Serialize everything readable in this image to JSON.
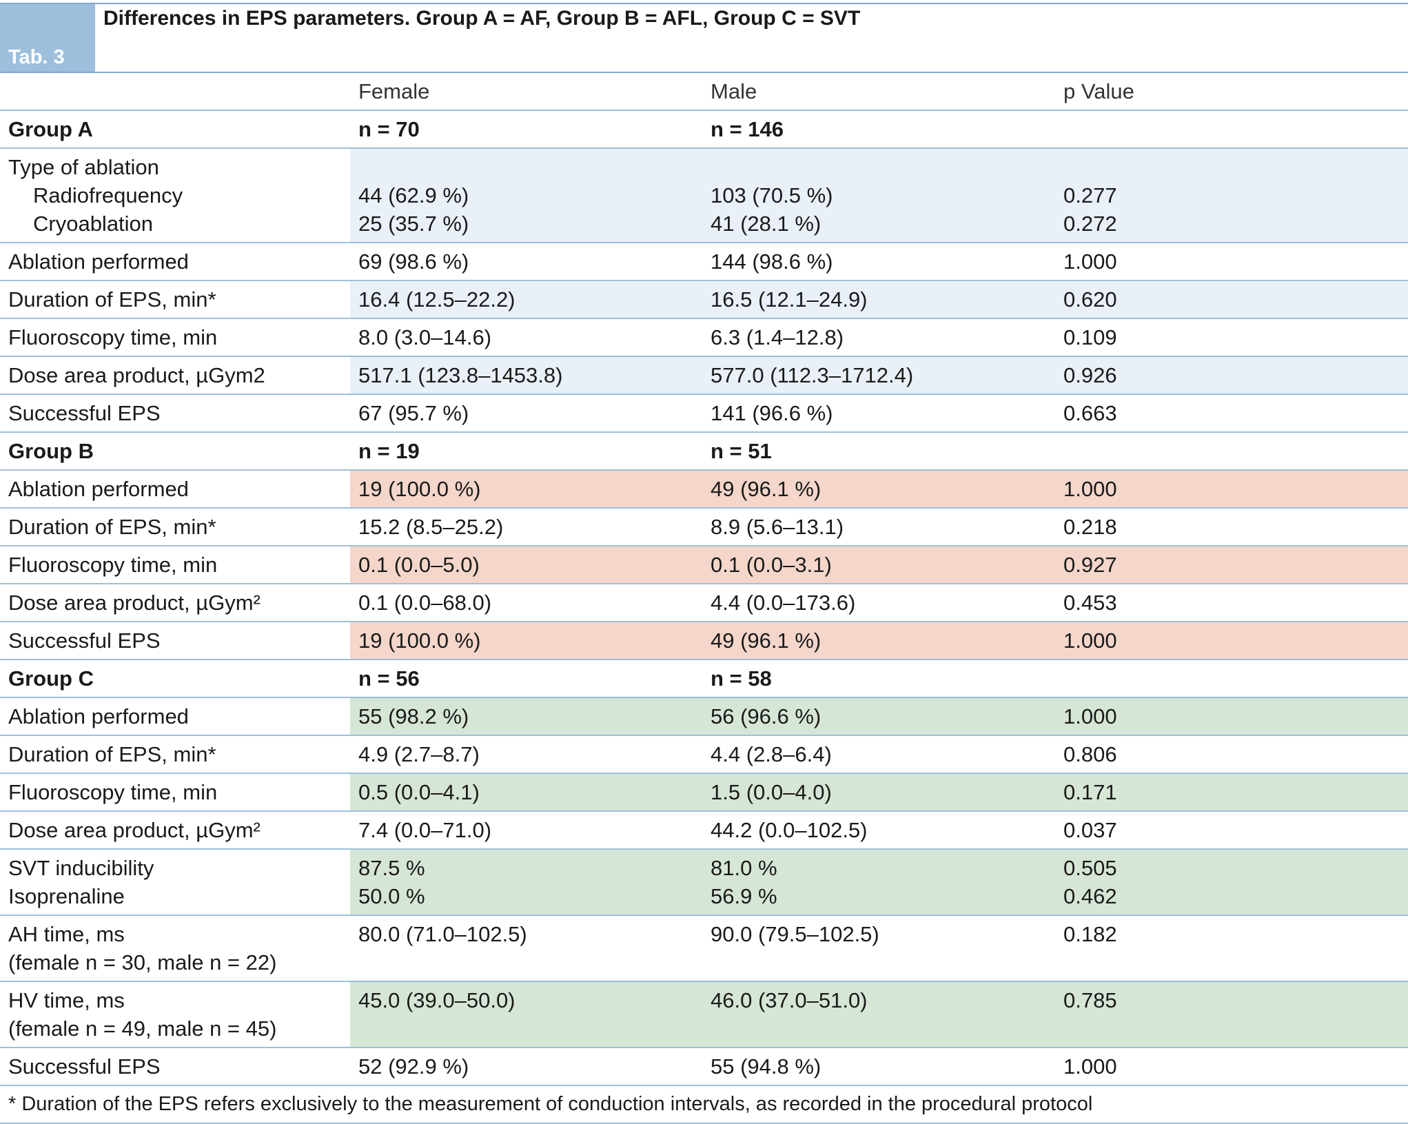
{
  "header": {
    "tab_label": "Tab. 3",
    "title": "Differences in EPS parameters. Group A = AF, Group B = AFL, Group C = SVT"
  },
  "columns": [
    "",
    "Female",
    "Male",
    "p Value"
  ],
  "colors": {
    "header_tab": "#9dbfdc",
    "group_a_tint": "#e9f0f8",
    "group_b_tint": "#f4d6ca",
    "group_c_tint": "#d6e6d6"
  },
  "group_a": {
    "label": "Group A",
    "n_female": "n = 70",
    "n_male": "n = 146",
    "type_of_ablation": "Type of ablation",
    "radiofrequency": {
      "label": "Radiofrequency",
      "female": "44 (62.9 %)",
      "male": "103 (70.5 %)",
      "p": "0.277"
    },
    "cryoablation": {
      "label": "Cryoablation",
      "female": "25 (35.7 %)",
      "male": "41 (28.1 %)",
      "p": "0.272"
    },
    "rows": [
      {
        "label": "Ablation performed",
        "female": "69 (98.6 %)",
        "male": "144 (98.6 %)",
        "p": "1.000"
      },
      {
        "label": "Duration of EPS, min*",
        "female": "16.4 (12.5–22.2)",
        "male": "16.5 (12.1–24.9)",
        "p": "0.620"
      },
      {
        "label": "Fluoroscopy time, min",
        "female": "8.0 (3.0–14.6)",
        "male": "6.3 (1.4–12.8)",
        "p": "0.109"
      },
      {
        "label": "Dose area product, µGym2",
        "female": "517.1 (123.8–1453.8)",
        "male": "577.0 (112.3–1712.4)",
        "p": "0.926"
      },
      {
        "label": "Successful EPS",
        "female": "67 (95.7 %)",
        "male": "141 (96.6 %)",
        "p": "0.663"
      }
    ]
  },
  "group_b": {
    "label": "Group B",
    "n_female": "n = 19",
    "n_male": "n = 51",
    "rows": [
      {
        "label": "Ablation performed",
        "female": "19 (100.0 %)",
        "male": "49 (96.1 %)",
        "p": "1.000"
      },
      {
        "label": "Duration of EPS, min*",
        "female": "15.2 (8.5–25.2)",
        "male": "8.9 (5.6–13.1)",
        "p": "0.218"
      },
      {
        "label": "Fluoroscopy time, min",
        "female": "0.1 (0.0–5.0)",
        "male": "0.1 (0.0–3.1)",
        "p": "0.927"
      },
      {
        "label": "Dose area product, µGym²",
        "female": "0.1 (0.0–68.0)",
        "male": "4.4 (0.0–173.6)",
        "p": "0.453"
      },
      {
        "label": "Successful EPS",
        "female": "19 (100.0 %)",
        "male": "49 (96.1 %)",
        "p": "1.000"
      }
    ]
  },
  "group_c": {
    "label": "Group C",
    "n_female": "n = 56",
    "n_male": "n = 58",
    "rows": [
      {
        "label": "Ablation performed",
        "female": "55 (98.2 %)",
        "male": "56 (96.6 %)",
        "p": "1.000"
      },
      {
        "label": "Duration of EPS, min*",
        "female": "4.9 (2.7–8.7)",
        "male": "4.4 (2.8–6.4)",
        "p": "0.806"
      },
      {
        "label": "Fluoroscopy time, min",
        "female": "0.5 (0.0–4.1)",
        "male": "1.5 (0.0–4.0)",
        "p": "0.171"
      },
      {
        "label": "Dose area product, µGym²",
        "female": "7.4 (0.0–71.0)",
        "male": "44.2 (0.0–102.5)",
        "p": "0.037"
      }
    ],
    "svt_inducibility": {
      "label": "SVT inducibility",
      "female": "87.5 %",
      "male": "81.0 %",
      "p": "0.505"
    },
    "isoprenaline": {
      "label": "Isoprenaline",
      "female": "50.0 %",
      "male": "56.9 %",
      "p": "0.462"
    },
    "ah_time": {
      "label": "AH time, ms",
      "sublabel": "(female n = 30, male n = 22)",
      "female": "80.0 (71.0–102.5)",
      "male": "90.0 (79.5–102.5)",
      "p": "0.182"
    },
    "hv_time": {
      "label": "HV time, ms",
      "sublabel": "(female n = 49, male n = 45)",
      "female": "45.0 (39.0–50.0)",
      "male": "46.0 (37.0–51.0)",
      "p": "0.785"
    },
    "successful_eps": {
      "label": "Successful EPS",
      "female": "52 (92.9 %)",
      "male": "55 (94.8 %)",
      "p": "1.000"
    }
  },
  "footnote": "* Duration of the EPS refers exclusively to the measurement of conduction intervals, as recorded in the procedural protocol"
}
